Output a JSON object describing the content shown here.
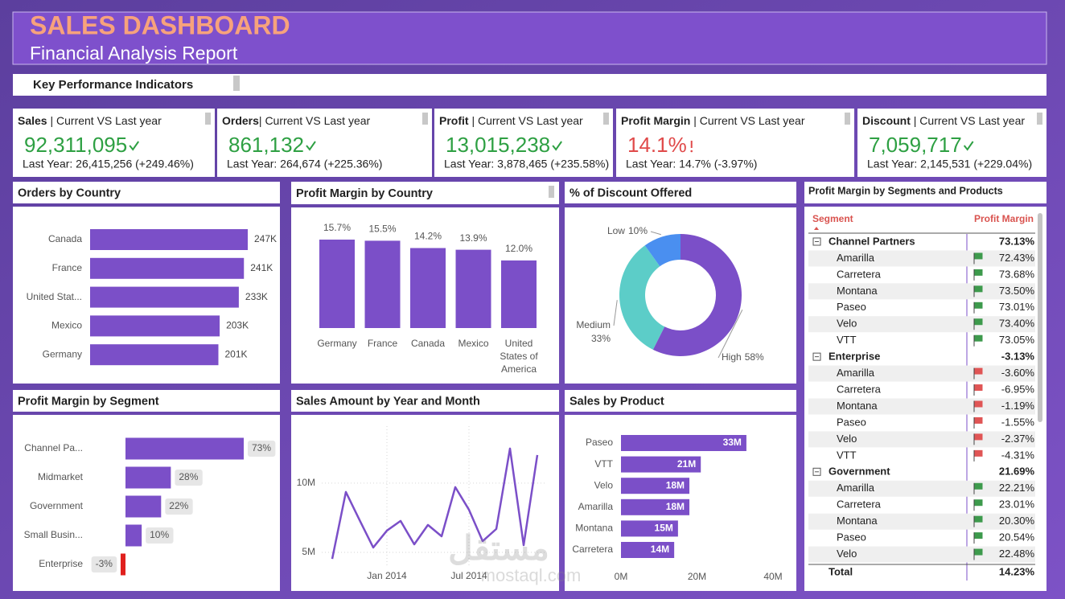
{
  "header": {
    "title": "SALES DASHBOARD",
    "subtitle": "Financial Analysis Report"
  },
  "kpi_section": {
    "title": "Key Performance Indicators"
  },
  "kpis": [
    {
      "name": "Sales",
      "caption": " | Current VS Last year",
      "value": "92,311,095",
      "last_year": "Last Year: 26,415,256 (+249.46%)",
      "color": "#2ea043",
      "indicator": "check"
    },
    {
      "name": "Orders",
      "caption": "| Current VS Last year",
      "value": "861,132",
      "last_year": "Last Year: 264,674 (+225.36%)",
      "color": "#2ea043",
      "indicator": "check"
    },
    {
      "name": "Profit",
      "caption": " | Current VS Last year",
      "value": "13,015,238",
      "last_year": "Last Year: 3,878,465 (+235.58%)",
      "color": "#2ea043",
      "indicator": "check"
    },
    {
      "name": "Profit Margin",
      "caption": " | Current VS Last year",
      "value": "14.1%",
      "last_year": "Last Year: 14.7% (-3.97%)",
      "color": "#e04a4a",
      "indicator": "alert"
    },
    {
      "name": "Discount",
      "caption": " | Current VS Last year",
      "value": "7,059,717",
      "last_year": "Last Year: 2,145,531 (+229.04%)",
      "color": "#2ea043",
      "indicator": "check"
    }
  ],
  "chart_data": [
    {
      "type": "bar",
      "orientation": "horizontal",
      "title": "Orders by Country",
      "categories": [
        "Canada",
        "France",
        "United Stat...",
        "Mexico",
        "Germany"
      ],
      "values": [
        247000,
        241000,
        233000,
        203000,
        201000
      ],
      "value_labels": [
        "247K",
        "241K",
        "233K",
        "203K",
        "201K"
      ],
      "color": "#7b4fc8"
    },
    {
      "type": "bar",
      "orientation": "vertical",
      "title": "Profit Margin by Country",
      "categories": [
        "Germany",
        "France",
        "Canada",
        "Mexico",
        "United States of America"
      ],
      "values": [
        15.7,
        15.5,
        14.2,
        13.9,
        12.0
      ],
      "value_labels": [
        "15.7%",
        "15.5%",
        "14.2%",
        "13.9%",
        "12.0%"
      ],
      "color": "#7b4fc8"
    },
    {
      "type": "pie",
      "donut": true,
      "title": "% of Discount Offered",
      "categories": [
        "High",
        "Medium",
        "Low"
      ],
      "values": [
        58,
        33,
        10
      ],
      "value_labels": [
        "58%",
        "33%",
        "10%"
      ],
      "colors": [
        "#7b4fc8",
        "#5ccdc8",
        "#4a8ff0"
      ]
    },
    {
      "type": "bar",
      "orientation": "horizontal",
      "title": "Profit Margin by Segment",
      "categories": [
        "Channel Pa...",
        "Midmarket",
        "Government",
        "Small Busin...",
        "Enterprise"
      ],
      "values": [
        73,
        28,
        22,
        10,
        -3
      ],
      "value_labels": [
        "73%",
        "28%",
        "22%",
        "10%",
        "-3%"
      ],
      "color": "#7b4fc8",
      "negative_color": "#e0201e"
    },
    {
      "type": "line",
      "title": "Sales Amount by Year and Month",
      "x": [
        "2013-09",
        "2013-10",
        "2013-11",
        "2013-12",
        "2014-01",
        "2014-02",
        "2014-03",
        "2014-04",
        "2014-05",
        "2014-06",
        "2014-07",
        "2014-08",
        "2014-09",
        "2014-10",
        "2014-11",
        "2014-12"
      ],
      "values": [
        4530000,
        9360000,
        7330000,
        5350000,
        6570000,
        7270000,
        5580000,
        6980000,
        6160000,
        9710000,
        8080000,
        5810000,
        6690000,
        12500000,
        5520000,
        12030000
      ],
      "xticks": [
        {
          "value": "2014-01",
          "label": "Jan 2014"
        },
        {
          "value": "2014-07",
          "label": "Jul 2014"
        }
      ],
      "ylim": [
        4000000,
        14000000
      ],
      "yticks": [
        {
          "value": 5000000,
          "label": "5M"
        },
        {
          "value": 10000000,
          "label": "10M"
        }
      ],
      "grid": true,
      "color": "#7b4fc8"
    },
    {
      "type": "bar",
      "orientation": "horizontal",
      "title": "Sales by Product",
      "categories": [
        "Paseo",
        "VTT",
        "Velo",
        "Amarilla",
        "Montana",
        "Carretera"
      ],
      "values": [
        33000000,
        21000000,
        18000000,
        18000000,
        15000000,
        14000000
      ],
      "value_labels": [
        "33M",
        "21M",
        "18M",
        "18M",
        "15M",
        "14M"
      ],
      "xlim": [
        0,
        40000000
      ],
      "xticks": [
        {
          "value": 0,
          "label": "0M"
        },
        {
          "value": 20000000,
          "label": "20M"
        },
        {
          "value": 40000000,
          "label": "40M"
        }
      ],
      "color": "#7b4fc8"
    }
  ],
  "matrix": {
    "title": "Profit Margin by Segments and Products",
    "headers": [
      "Segment",
      "Profit Margin"
    ],
    "groups": [
      {
        "name": "Channel Partners",
        "value": "73.13%",
        "rows": [
          {
            "name": "Amarilla",
            "value": "72.43%",
            "flag": "#3d9a4c"
          },
          {
            "name": "Carretera",
            "value": "73.68%",
            "flag": "#3d9a4c"
          },
          {
            "name": "Montana",
            "value": "73.50%",
            "flag": "#3d9a4c"
          },
          {
            "name": "Paseo",
            "value": "73.01%",
            "flag": "#3d9a4c"
          },
          {
            "name": "Velo",
            "value": "73.40%",
            "flag": "#3d9a4c"
          },
          {
            "name": "VTT",
            "value": "73.05%",
            "flag": "#3d9a4c"
          }
        ]
      },
      {
        "name": "Enterprise",
        "value": "-3.13%",
        "rows": [
          {
            "name": "Amarilla",
            "value": "-3.60%",
            "flag": "#e05555"
          },
          {
            "name": "Carretera",
            "value": "-6.95%",
            "flag": "#e05555"
          },
          {
            "name": "Montana",
            "value": "-1.19%",
            "flag": "#e05555"
          },
          {
            "name": "Paseo",
            "value": "-1.55%",
            "flag": "#e05555"
          },
          {
            "name": "Velo",
            "value": "-2.37%",
            "flag": "#e05555"
          },
          {
            "name": "VTT",
            "value": "-4.31%",
            "flag": "#e05555"
          }
        ]
      },
      {
        "name": "Government",
        "value": "21.69%",
        "rows": [
          {
            "name": "Amarilla",
            "value": "22.21%",
            "flag": "#3d9a4c"
          },
          {
            "name": "Carretera",
            "value": "23.01%",
            "flag": "#3d9a4c"
          },
          {
            "name": "Montana",
            "value": "20.30%",
            "flag": "#3d9a4c"
          },
          {
            "name": "Paseo",
            "value": "20.54%",
            "flag": "#3d9a4c"
          },
          {
            "name": "Velo",
            "value": "22.48%",
            "flag": "#3d9a4c"
          }
        ]
      }
    ],
    "total": {
      "label": "Total",
      "value": "14.23%"
    }
  },
  "watermark": {
    "logo": "مستقل",
    "site": "mostaql.com"
  }
}
